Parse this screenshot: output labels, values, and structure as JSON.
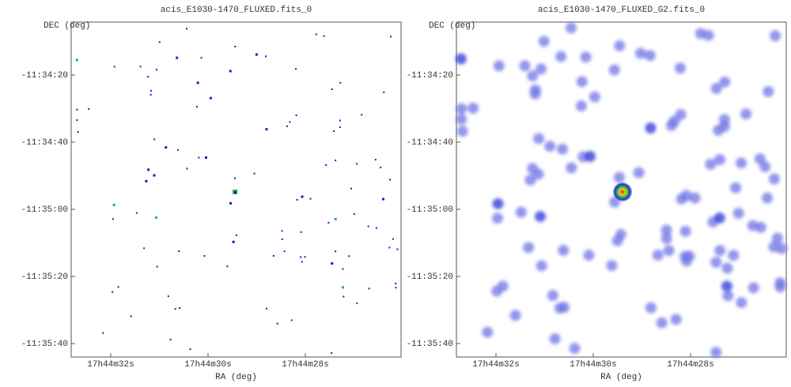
{
  "panels": [
    {
      "title": "acis_E1030-1470_FLUXED.fits_0",
      "y_label": "DEC (deg)",
      "x_label": "RA (deg)",
      "y_ticks": [
        "-11:34:20",
        "-11:34:40",
        "-11:35:00",
        "-11:35:20",
        "-11:35:40"
      ],
      "x_ticks": [
        "17h44m32s",
        "17h44m30s",
        "17h44m28s"
      ]
    },
    {
      "title": "acis_E1030-1470_FLUXED_G2.fits_0",
      "y_label": "DEC (deg)",
      "x_label": "RA (deg)",
      "y_ticks": [
        "-11:34:20",
        "-11:34:40",
        "-11:35:00",
        "-11:35:20",
        "-11:35:40"
      ],
      "x_ticks": [
        "17h44m32s",
        "17h44m30s",
        "17h44m28s"
      ]
    }
  ]
}
